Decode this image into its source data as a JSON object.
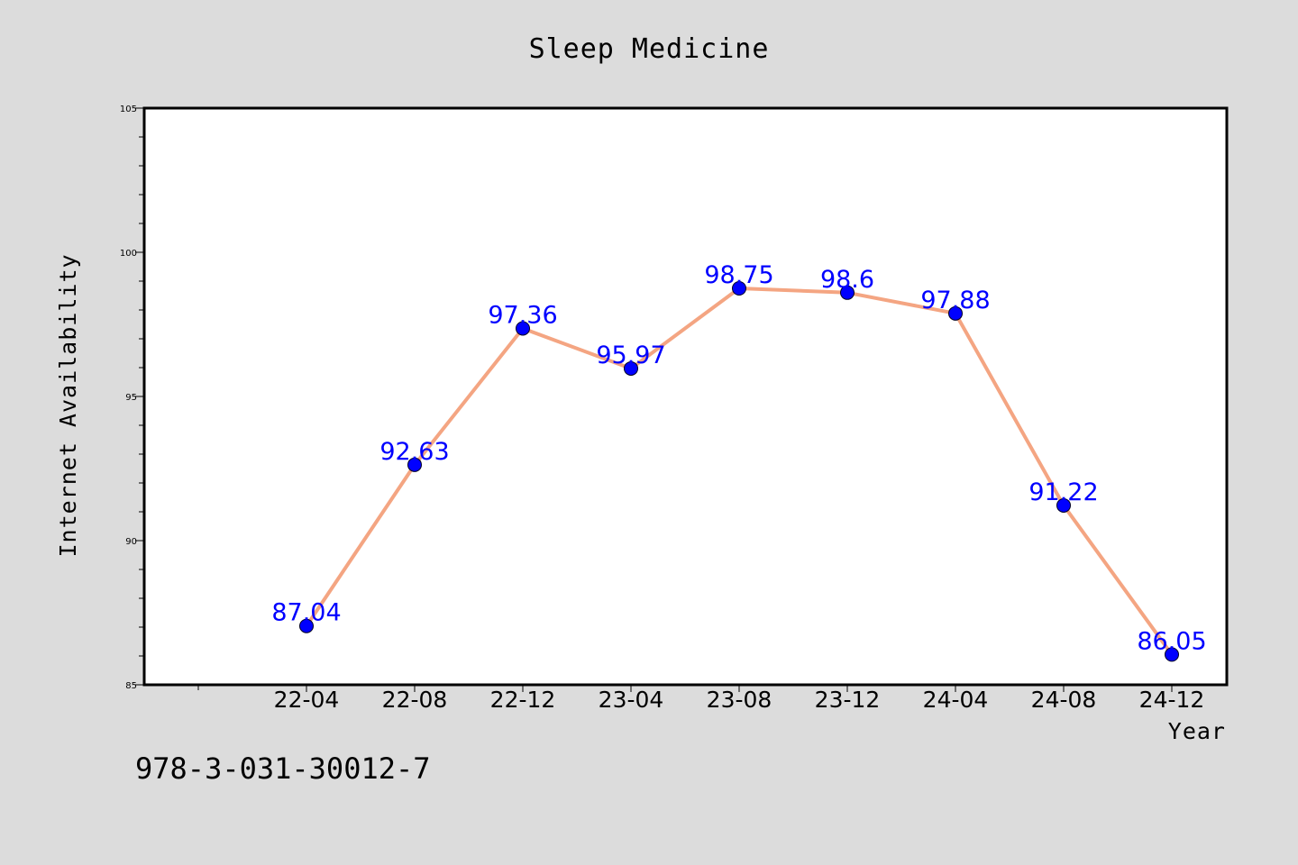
{
  "chart_data": {
    "type": "line",
    "title": "Sleep Medicine",
    "xlabel": "Year",
    "ylabel": "Internet Availability",
    "categories": [
      "22-04",
      "22-08",
      "22-12",
      "23-04",
      "23-08",
      "23-12",
      "24-04",
      "24-08",
      "24-12"
    ],
    "values": [
      87.04,
      92.63,
      97.36,
      95.97,
      98.75,
      98.6,
      97.88,
      91.22,
      86.05
    ],
    "value_labels": [
      "87.04",
      "92.63",
      "97.36",
      "95.97",
      "98.75",
      "98.6",
      "97.88",
      "91.22",
      "86.05"
    ],
    "ylim": [
      85,
      105
    ],
    "yticks": [
      85,
      90,
      95,
      100,
      105
    ],
    "grid": false,
    "legend": "none",
    "line_color": "#f4a582",
    "marker_color": "#0000ff",
    "label_color": "#0000ff"
  },
  "footer_text": "978-3-031-30012-7"
}
